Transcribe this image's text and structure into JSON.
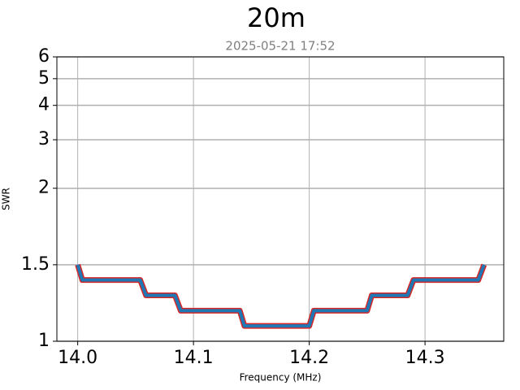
{
  "chart_data": {
    "type": "line",
    "title": "20m",
    "subtitle": "2025-05-21 17:52",
    "x_label": "Frequency (MHz)",
    "y_label": "SWR",
    "x": [
      14.0,
      14.004,
      14.054,
      14.059,
      14.084,
      14.089,
      14.14,
      14.144,
      14.2,
      14.204,
      14.25,
      14.254,
      14.285,
      14.29,
      14.346,
      14.351
    ],
    "series": [
      {
        "color": "#1f77b4",
        "outline_color": "#d62728",
        "values": [
          1.5,
          1.4,
          1.4,
          1.3,
          1.3,
          1.2,
          1.2,
          1.1,
          1.1,
          1.2,
          1.2,
          1.3,
          1.3,
          1.4,
          1.4,
          1.5
        ]
      }
    ],
    "xlim": [
      13.982,
      14.368
    ],
    "xticks": [
      {
        "value": 14.0,
        "label": "14.0"
      },
      14.1,
      14.2,
      14.3
    ],
    "ylim": [
      1,
      6
    ],
    "yticks": [
      1,
      1.5,
      2,
      3,
      4,
      5,
      6
    ],
    "yscale": "symlog",
    "linthresh": 2,
    "grid": true
  }
}
